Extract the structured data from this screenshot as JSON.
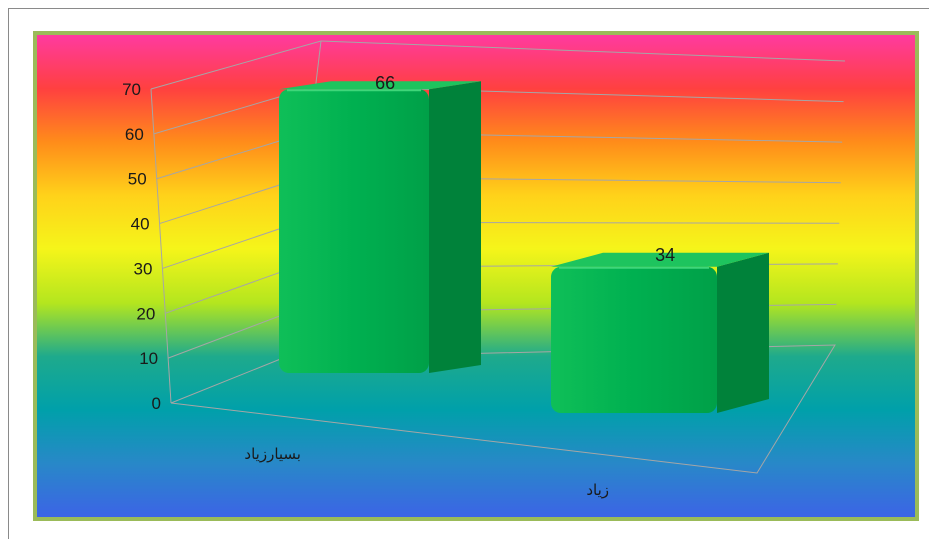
{
  "chart_data": {
    "type": "bar",
    "categories": [
      "بسیارزیاد",
      "زیاد"
    ],
    "values": [
      66,
      34
    ],
    "data_labels": [
      "66",
      "34"
    ],
    "ylim": [
      0,
      70
    ],
    "yticks": [
      "0",
      "10",
      "20",
      "30",
      "40",
      "50",
      "60",
      "70"
    ],
    "title": "",
    "xlabel": "",
    "ylabel": "",
    "grid": true,
    "legend": "none",
    "style": "3d",
    "colors": {
      "bar_front": "#00b050",
      "bar_side": "#00823a",
      "bar_top": "#1ec45e",
      "frame_border": "#9bbb59",
      "gridline": "#a6a6a6",
      "text": "#1a1a1a",
      "background_gradient": [
        "#ff3aa0",
        "#ff4040",
        "#ff8c1a",
        "#ffd21a",
        "#f5f51a",
        "#b4e61e",
        "#1eaa8c",
        "#00a0aa",
        "#2888c8",
        "#3c64e6"
      ]
    }
  }
}
